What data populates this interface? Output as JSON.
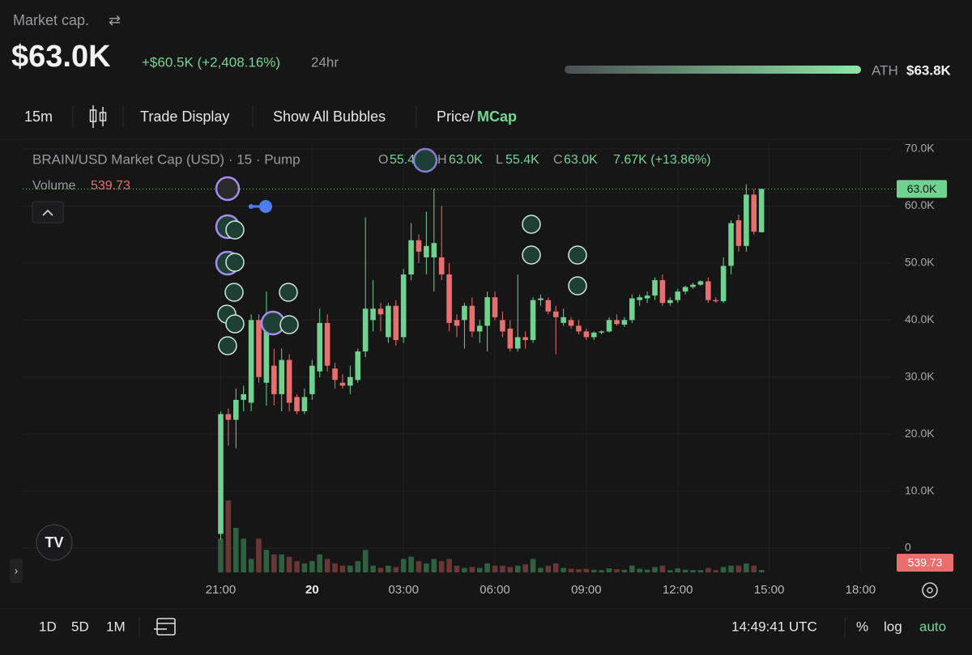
{
  "header": {
    "title": "Market cap.",
    "value": "$63.0K",
    "change": "+$60.5K (+2,408.16%)",
    "period": "24hr",
    "ath_label": "ATH",
    "ath_value": "$63.8K"
  },
  "toolbar": {
    "interval": "15m",
    "trade_display": "Trade Display",
    "bubbles": "Show All Bubbles",
    "price": "Price/",
    "mcap": "MCap"
  },
  "footer": {
    "ranges": [
      "1D",
      "5D",
      "1M"
    ],
    "time": "14:49:41 UTC",
    "percent": "%",
    "log": "log",
    "auto": "auto"
  },
  "chart_data": {
    "type": "candlestick",
    "title": "BRAIN/USD Market Cap (USD) · 15 · Pump",
    "ohlc_legend": [
      {
        "label": "O",
        "value": "55.4K"
      },
      {
        "label": "H",
        "value": "63.0K"
      },
      {
        "label": "L",
        "value": "55.4K"
      },
      {
        "label": "C",
        "value": "63.0K"
      }
    ],
    "change": "7.67K (+13.86%)",
    "up_color": "#6fd28e",
    "down_color": "#ea6e6c",
    "x": [
      0,
      0.25,
      0.5,
      0.75,
      1,
      1.25,
      1.5,
      1.75,
      2,
      2.25,
      2.5,
      2.75,
      3,
      3.25,
      3.5,
      3.75,
      4,
      4.25,
      4.5,
      4.75,
      5,
      5.25,
      5.5,
      5.75,
      6,
      6.25,
      6.5,
      6.75,
      7,
      7.25,
      7.5,
      7.75,
      8,
      8.25,
      8.5,
      8.75,
      9,
      9.25,
      9.5,
      9.75,
      10,
      10.25,
      10.5,
      10.75,
      11,
      11.25,
      11.5,
      11.75,
      12,
      12.25,
      12.5,
      12.75,
      13,
      13.25,
      13.5,
      13.75,
      14,
      14.25,
      14.5,
      14.75,
      15,
      15.25,
      15.5,
      15.75,
      16,
      16.25,
      16.5,
      16.75,
      17,
      17.25,
      17.5,
      17.75
    ],
    "open": [
      2500,
      23500,
      22500,
      26000,
      25500,
      40000,
      29000,
      32000,
      27000,
      33000,
      26500,
      24000,
      27000,
      31000,
      39500,
      31500,
      29000,
      28500,
      29500,
      34500,
      40000,
      42000,
      37000,
      42500,
      37000,
      48000,
      54000,
      51000,
      51000,
      51000,
      48000,
      40000,
      40000,
      42500,
      38000,
      39000,
      44000,
      40000,
      38500,
      35000,
      37000,
      36500,
      43500,
      43500,
      41500,
      39500,
      40000,
      39000,
      38000,
      37000,
      37800,
      38000,
      40000,
      39200,
      40000,
      43500,
      43800,
      44300,
      47000,
      43000,
      43500,
      45000,
      45800,
      46200,
      46800,
      43500,
      43300,
      49500,
      57500,
      53000,
      62000,
      55400
    ],
    "high": [
      24000,
      24500,
      28000,
      28500,
      41000,
      41000,
      45000,
      35000,
      35000,
      34000,
      27000,
      28000,
      33000,
      42000,
      41000,
      32500,
      30500,
      32000,
      35000,
      58000,
      47000,
      43000,
      43000,
      43500,
      49000,
      57000,
      55000,
      59000,
      63000,
      60000,
      50000,
      41000,
      43000,
      44000,
      40000,
      45000,
      45000,
      41500,
      40000,
      48000,
      38000,
      44000,
      44500,
      44000,
      42500,
      42000,
      40500,
      40000,
      38500,
      38000,
      38200,
      40500,
      41000,
      40500,
      44500,
      44500,
      45000,
      47500,
      48000,
      44000,
      45500,
      46000,
      46500,
      47000,
      47500,
      44000,
      51000,
      57500,
      58500,
      63800,
      63000,
      63000
    ],
    "low": [
      1500,
      18000,
      17500,
      24000,
      24000,
      29000,
      25000,
      25000,
      24000,
      24000,
      23500,
      23500,
      26000,
      30000,
      31000,
      28000,
      28000,
      27000,
      29000,
      33500,
      38000,
      38000,
      36000,
      35500,
      36000,
      47000,
      50000,
      48000,
      45000,
      47000,
      38000,
      37000,
      35000,
      37000,
      36000,
      34500,
      40000,
      37000,
      34500,
      34500,
      35000,
      36000,
      42500,
      41000,
      34000,
      39000,
      38500,
      37500,
      36500,
      36500,
      37500,
      37800,
      39000,
      38800,
      39500,
      42500,
      43000,
      43500,
      42500,
      42500,
      43000,
      44500,
      45500,
      46000,
      43000,
      43000,
      43000,
      48000,
      52000,
      52000,
      55000,
      55400
    ],
    "close": [
      23500,
      22500,
      26000,
      27000,
      40000,
      30000,
      40000,
      27000,
      33000,
      25500,
      24000,
      26500,
      32000,
      39500,
      32000,
      29500,
      28500,
      30000,
      34500,
      42000,
      42000,
      41000,
      42500,
      36500,
      48000,
      54000,
      52000,
      53000,
      53500,
      48000,
      39500,
      39000,
      42500,
      38000,
      39000,
      44000,
      40500,
      38000,
      35000,
      37000,
      36500,
      43500,
      43800,
      41500,
      40500,
      40500,
      39000,
      38000,
      37000,
      37800,
      38000,
      40000,
      39300,
      40000,
      43800,
      44000,
      44300,
      47000,
      43000,
      43500,
      45000,
      45800,
      46200,
      46800,
      43500,
      43300,
      49500,
      57000,
      53000,
      62000,
      55500,
      63000
    ],
    "volume": {
      "name": "Volume",
      "up_color": "#2d6140",
      "down_color": "#6b3636",
      "ylim": [
        0,
        18000
      ],
      "values": [
        7500,
        16000,
        9900,
        7500,
        3000,
        7500,
        5000,
        4000,
        4000,
        3500,
        2500,
        2000,
        2500,
        4000,
        3000,
        2000,
        1500,
        1500,
        2500,
        5000,
        1500,
        1000,
        1500,
        1200,
        3000,
        3500,
        2500,
        2000,
        3000,
        2500,
        3000,
        1500,
        1000,
        1200,
        1000,
        2000,
        1500,
        1500,
        1200,
        1500,
        1800,
        3000,
        1000,
        1500,
        2000,
        1000,
        800,
        700,
        800,
        600,
        500,
        900,
        700,
        600,
        1500,
        800,
        600,
        1200,
        1500,
        500,
        900,
        600,
        500,
        500,
        1000,
        500,
        1200,
        1500,
        1500,
        2000,
        1500,
        539.73
      ]
    },
    "last_price": {
      "value": 63000,
      "label": "63.0K"
    },
    "xlim": [
      -6.5,
      22
    ],
    "ylim": [
      -4260,
      71000
    ],
    "xticks": [
      {
        "value": 0,
        "label": "21:00"
      },
      {
        "value": 3,
        "label": "20"
      },
      {
        "value": 6,
        "label": "03:00"
      },
      {
        "value": 9,
        "label": "06:00"
      },
      {
        "value": 12,
        "label": "09:00"
      },
      {
        "value": 15,
        "label": "12:00"
      },
      {
        "value": 18,
        "label": "15:00"
      },
      {
        "value": 21,
        "label": "18:00"
      }
    ],
    "yticks": [
      0,
      {
        "value": 10000,
        "label": "10.0K"
      },
      {
        "value": 20000,
        "label": "20.0K"
      },
      {
        "value": 30000,
        "label": "30.0K"
      },
      {
        "value": 40000,
        "label": "40.0K"
      },
      {
        "value": 50000,
        "label": "50.0K"
      },
      {
        "value": 60000,
        "label": "60.0K"
      },
      {
        "value": 70000,
        "label": "70.0K"
      }
    ],
    "grid": true
  }
}
